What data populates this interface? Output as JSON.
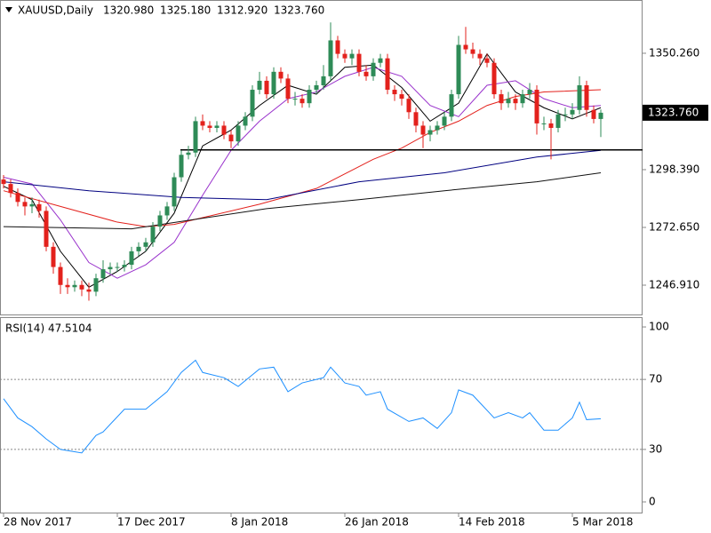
{
  "chart_data": [
    {
      "type": "candlestick",
      "title": "XAUUSD,Daily",
      "header_values": [
        "1320.980",
        "1325.180",
        "1312.920",
        "1323.760"
      ],
      "categories": [
        "28 Nov 2017",
        null,
        null,
        null,
        null,
        null,
        null,
        null,
        null,
        null,
        null,
        null,
        null,
        null,
        null,
        null,
        "17 Dec 2017",
        null,
        null,
        null,
        null,
        null,
        null,
        null,
        null,
        null,
        null,
        null,
        null,
        null,
        null,
        null,
        "8 Jan 2018",
        null,
        null,
        null,
        null,
        null,
        null,
        null,
        null,
        null,
        null,
        null,
        null,
        null,
        null,
        null,
        "26 Jan 2018",
        null,
        null,
        null,
        null,
        null,
        null,
        null,
        null,
        null,
        null,
        null,
        null,
        null,
        null,
        null,
        "14 Feb 2018",
        null,
        null,
        null,
        null,
        null,
        null,
        null,
        null,
        null,
        null,
        null,
        null,
        null,
        null,
        null,
        "5 Mar 2018",
        null,
        null,
        null,
        null
      ],
      "open": [
        1294,
        1292,
        1288,
        1284,
        1282,
        1283,
        1280,
        1264,
        1255,
        1247,
        1246,
        1247,
        1245,
        1244,
        1250,
        1254,
        1255,
        1255,
        1256,
        1262,
        1264,
        1266,
        1273,
        1278,
        1282,
        1295,
        1305,
        1306,
        1320,
        1318,
        1317,
        1318,
        1314,
        1311,
        1318,
        1322,
        1334,
        1338,
        1332,
        1342,
        1339,
        1330,
        1330,
        1328,
        1334,
        1336,
        1340,
        1356,
        1350,
        1348,
        1350,
        1342,
        1340,
        1346,
        1348,
        1334,
        1332,
        1330,
        1324,
        1318,
        1314,
        1316,
        1318,
        1322,
        1332,
        1354,
        1352,
        1350,
        1348,
        1346,
        1332,
        1328,
        1330,
        1328,
        1332,
        1334,
        1319,
        1319,
        1317,
        1323,
        1323,
        1325,
        1336,
        1325,
        1320.98
      ],
      "high": [
        1296,
        1294,
        1290,
        1286,
        1286,
        1285,
        1282,
        1266,
        1257,
        1250,
        1249,
        1249,
        1248,
        1252,
        1258,
        1257,
        1257,
        1258,
        1264,
        1266,
        1268,
        1275,
        1280,
        1284,
        1297,
        1307,
        1309,
        1322,
        1323,
        1320,
        1320,
        1320,
        1316,
        1320,
        1324,
        1336,
        1342,
        1340,
        1344,
        1344,
        1341,
        1333,
        1332,
        1336,
        1338,
        1345,
        1364,
        1358,
        1352,
        1352,
        1352,
        1345,
        1348,
        1350,
        1350,
        1336,
        1334,
        1332,
        1326,
        1320,
        1318,
        1320,
        1324,
        1334,
        1358,
        1362,
        1355,
        1352,
        1350,
        1348,
        1334,
        1333,
        1332,
        1334,
        1337,
        1336,
        1322,
        1321,
        1325,
        1326,
        1328,
        1340,
        1338,
        1327,
        1325.18
      ],
      "low": [
        1290,
        1286,
        1282,
        1278,
        1279,
        1277,
        1262,
        1252,
        1243,
        1243,
        1244,
        1242,
        1240,
        1242,
        1248,
        1252,
        1253,
        1253,
        1254,
        1260,
        1262,
        1264,
        1271,
        1276,
        1280,
        1293,
        1303,
        1304,
        1316,
        1315,
        1315,
        1312,
        1308,
        1309,
        1316,
        1320,
        1332,
        1330,
        1330,
        1337,
        1328,
        1327,
        1326,
        1326,
        1332,
        1334,
        1338,
        1348,
        1346,
        1345,
        1340,
        1338,
        1338,
        1344,
        1332,
        1329,
        1327,
        1321,
        1315,
        1308,
        1311,
        1314,
        1316,
        1320,
        1330,
        1350,
        1348,
        1345,
        1344,
        1330,
        1325,
        1326,
        1325,
        1326,
        1330,
        1314,
        1316,
        1303,
        1315,
        1320,
        1321,
        1323,
        1322,
        1319,
        1312.92
      ],
      "close": [
        1292,
        1288,
        1284,
        1282,
        1283,
        1280,
        1264,
        1255,
        1247,
        1246,
        1247,
        1245,
        1244,
        1250,
        1254,
        1255,
        1255,
        1256,
        1262,
        1264,
        1266,
        1273,
        1278,
        1282,
        1295,
        1305,
        1306,
        1320,
        1318,
        1317,
        1318,
        1314,
        1311,
        1318,
        1322,
        1334,
        1338,
        1332,
        1342,
        1339,
        1330,
        1330,
        1328,
        1334,
        1336,
        1340,
        1356,
        1350,
        1348,
        1350,
        1342,
        1340,
        1346,
        1348,
        1334,
        1332,
        1330,
        1324,
        1318,
        1314,
        1316,
        1318,
        1322,
        1332,
        1354,
        1352,
        1350,
        1348,
        1346,
        1332,
        1328,
        1330,
        1328,
        1332,
        1334,
        1319,
        1319,
        1317,
        1323,
        1323,
        1325,
        1336,
        1325,
        1320.98,
        1323.76
      ],
      "up_color": "#2e8b57",
      "down_color": "#e3211c",
      "series": [
        {
          "color": "#000000",
          "x": [
            0,
            4,
            8,
            12,
            16,
            20,
            24,
            28,
            32,
            36,
            40,
            44,
            48,
            52,
            56,
            60,
            64,
            68,
            72,
            76,
            80,
            84
          ],
          "values": [
            1291,
            1285,
            1262,
            1246,
            1253,
            1262,
            1279,
            1309,
            1316,
            1327,
            1336,
            1332,
            1344,
            1345,
            1335,
            1320,
            1328,
            1350,
            1333,
            1326,
            1321,
            1326
          ]
        },
        {
          "color": "#9932cc",
          "x": [
            0,
            4,
            8,
            12,
            16,
            20,
            24,
            28,
            32,
            36,
            40,
            44,
            48,
            52,
            56,
            60,
            64,
            68,
            72,
            76,
            80,
            84
          ],
          "values": [
            1295,
            1292,
            1276,
            1257,
            1250,
            1256,
            1266,
            1287,
            1307,
            1320,
            1330,
            1333,
            1340,
            1344,
            1340,
            1327,
            1322,
            1336,
            1338,
            1330,
            1326,
            1327
          ]
        },
        {
          "color": "#e3211c",
          "x": [
            0,
            8,
            16,
            20,
            24,
            28,
            36,
            44,
            52,
            56,
            60,
            64,
            68,
            72,
            76,
            84
          ],
          "values": [
            1289,
            1282,
            1275,
            1273,
            1274,
            1277,
            1283,
            1290,
            1303,
            1308,
            1315,
            1320,
            1327,
            1331,
            1333,
            1334
          ]
        },
        {
          "color": "#000080",
          "x": [
            0,
            12,
            25,
            37,
            50,
            62,
            75,
            84
          ],
          "values": [
            1293,
            1289,
            1286,
            1285,
            1293,
            1297,
            1304,
            1307
          ]
        },
        {
          "color": "#111111",
          "x": [
            0,
            18,
            37,
            50,
            62,
            75,
            84
          ],
          "values": [
            1273,
            1272,
            1281,
            1285,
            1289,
            1293,
            1297
          ]
        }
      ],
      "hline": 1307.2,
      "last_price": {
        "value": 1323.76,
        "label": "1323.760"
      },
      "ylim": [
        1233.45,
        1374.0
      ],
      "yticks": [
        {
          "value": 1246.91,
          "label": "1246.910"
        },
        {
          "value": 1272.65,
          "label": "1272.650"
        },
        {
          "value": 1298.39,
          "label": "1298.390"
        },
        {
          "value": 1350.26,
          "label": "1350.260"
        }
      ]
    },
    {
      "type": "line",
      "title": "RSI(14) 47.5104",
      "color": "#1e90ff",
      "x": [
        0,
        2,
        4,
        6,
        8,
        11,
        13,
        14,
        17,
        20,
        23,
        25,
        27,
        28,
        31,
        33,
        36,
        38,
        40,
        42,
        45,
        46,
        48,
        50,
        51,
        53,
        54,
        57,
        59,
        61,
        63,
        64,
        66,
        69,
        71,
        73,
        74,
        76,
        78,
        80,
        81,
        82,
        84
      ],
      "values": [
        59,
        48,
        43,
        36,
        30,
        28,
        38,
        40,
        53,
        53,
        63,
        74,
        81,
        74,
        71,
        66,
        76,
        77,
        63,
        68,
        71,
        77,
        68,
        66,
        61,
        63,
        53,
        46,
        48,
        42,
        51,
        64,
        61,
        48,
        51,
        48,
        51,
        41,
        41,
        48,
        57,
        47,
        47.5104
      ],
      "ylim": [
        -6.6,
        105.1
      ],
      "yticks": [
        0,
        30,
        70,
        100
      ],
      "dashed_levels": [
        30,
        70
      ]
    }
  ]
}
